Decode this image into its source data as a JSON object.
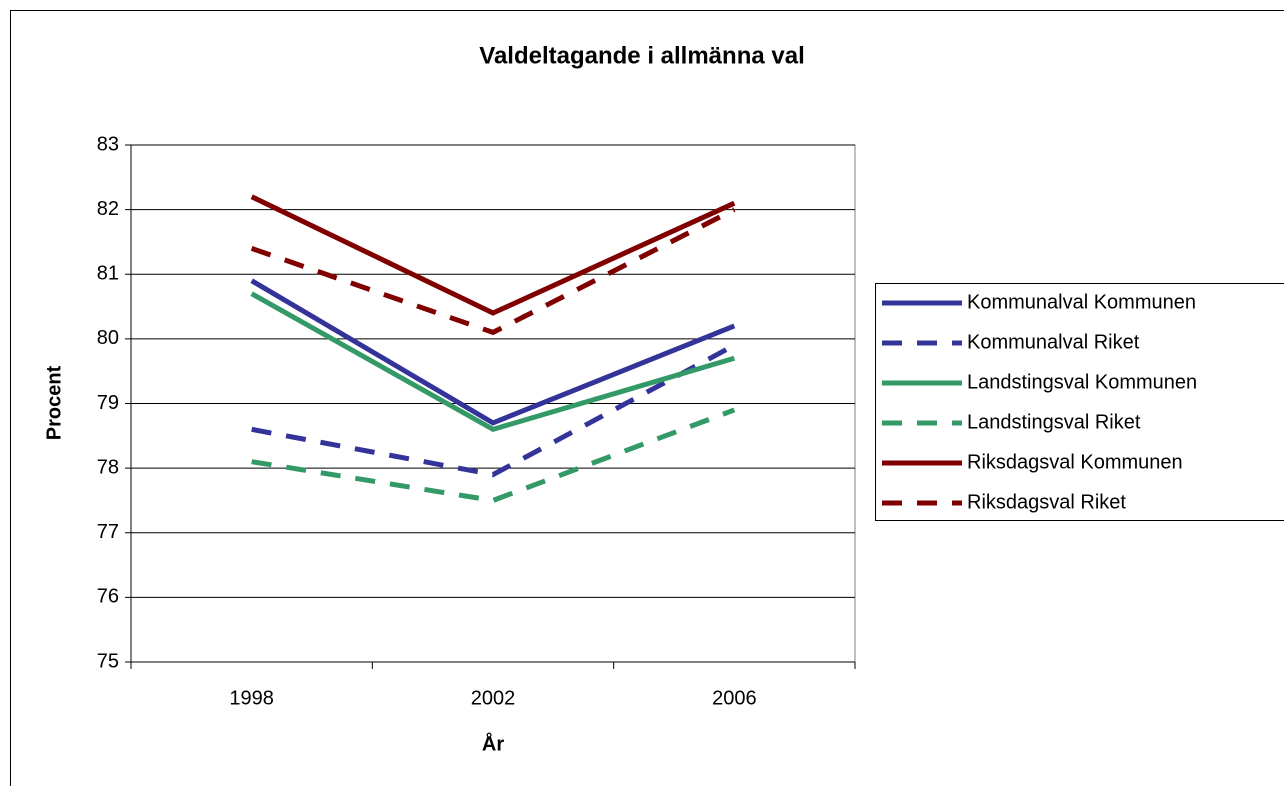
{
  "chart_data": {
    "type": "line",
    "title": "Valdeltagande i allmänna val",
    "x_label": "År",
    "y_label": "Procent",
    "categories": [
      "1998",
      "2002",
      "2006"
    ],
    "ylim": [
      75,
      83
    ],
    "yticks": [
      75,
      76,
      77,
      78,
      79,
      80,
      81,
      82,
      83
    ],
    "grid": true,
    "legend": "right",
    "series": [
      {
        "name": "Kommunalval Kommunen",
        "color": "#333399",
        "dashed": false,
        "values": [
          80.9,
          78.7,
          80.2
        ]
      },
      {
        "name": "Kommunalval Riket",
        "color": "#333399",
        "dashed": true,
        "values": [
          78.6,
          77.9,
          79.9
        ]
      },
      {
        "name": "Landstingsval Kommunen",
        "color": "#339966",
        "dashed": false,
        "values": [
          80.7,
          78.6,
          79.7
        ]
      },
      {
        "name": "Landstingsval Riket",
        "color": "#339966",
        "dashed": true,
        "values": [
          78.1,
          77.5,
          78.9
        ]
      },
      {
        "name": "Riksdagsval Kommunen",
        "color": "#800000",
        "dashed": false,
        "values": [
          82.2,
          80.4,
          82.1
        ]
      },
      {
        "name": "Riksdagsval Riket",
        "color": "#800000",
        "dashed": true,
        "values": [
          81.4,
          80.1,
          82.0
        ]
      }
    ]
  }
}
